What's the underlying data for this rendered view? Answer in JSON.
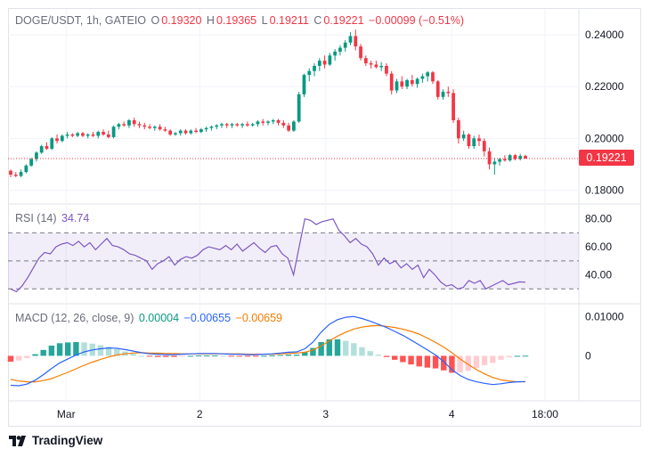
{
  "header": {
    "symbol": "DOGE/USDT, 1h, GATEIO",
    "o_label": "O",
    "o_value": "0.19320",
    "h_label": "H",
    "h_value": "0.19365",
    "l_label": "L",
    "l_value": "0.19211",
    "c_label": "C",
    "c_value": "0.19221",
    "change": "−0.00099 (−0.51%)"
  },
  "last_price": "0.19221",
  "rsi_legend": {
    "label": "RSI (14)",
    "value": "34.74"
  },
  "macd_legend": {
    "label": "MACD (12, 26, close, 9)",
    "hist": "0.00004",
    "macd": "−0.00655",
    "signal": "−0.00659"
  },
  "price_axis": [
    "0.24000",
    "0.22000",
    "0.20000",
    "0.18000"
  ],
  "rsi_axis": [
    "80.00",
    "60.00",
    "40.00"
  ],
  "macd_axis": [
    "0.01000",
    "0"
  ],
  "time_axis": [
    "Mar",
    "2",
    "3",
    "4",
    "18:00"
  ],
  "branding": {
    "name": "TradingView"
  },
  "colors": {
    "up": "#089981",
    "down": "#f23645",
    "rsi": "#7e57c2",
    "macd": "#2962ff",
    "signal": "#f57c00",
    "hist_up_strong": "#26a69a",
    "hist_up_weak": "#b2dfdb",
    "hist_down_strong": "#ff5252",
    "hist_down_weak": "#ffcdd2"
  },
  "chart_data": [
    {
      "type": "candlestick",
      "title": "DOGE/USDT, 1h, GATEIO",
      "ylim": [
        0.175,
        0.25
      ],
      "ohlc": [
        [
          0.1875,
          0.188,
          0.185,
          0.186
        ],
        [
          0.186,
          0.187,
          0.185,
          0.1855
        ],
        [
          0.1855,
          0.188,
          0.185,
          0.187
        ],
        [
          0.187,
          0.19,
          0.1865,
          0.1895
        ],
        [
          0.1895,
          0.1925,
          0.189,
          0.192
        ],
        [
          0.192,
          0.195,
          0.191,
          0.1945
        ],
        [
          0.1945,
          0.1975,
          0.194,
          0.197
        ],
        [
          0.197,
          0.1985,
          0.1955,
          0.196
        ],
        [
          0.196,
          0.2005,
          0.1955,
          0.2
        ],
        [
          0.2,
          0.2015,
          0.198,
          0.199
        ],
        [
          0.199,
          0.2015,
          0.1985,
          0.201
        ],
        [
          0.201,
          0.2025,
          0.2,
          0.2015
        ],
        [
          0.2015,
          0.202,
          0.2005,
          0.201
        ],
        [
          0.201,
          0.2025,
          0.2005,
          0.202
        ],
        [
          0.202,
          0.2025,
          0.2005,
          0.201
        ],
        [
          0.201,
          0.202,
          0.2,
          0.2015
        ],
        [
          0.2015,
          0.2025,
          0.2005,
          0.201
        ],
        [
          0.201,
          0.203,
          0.2,
          0.2025
        ],
        [
          0.2025,
          0.2035,
          0.201,
          0.2015
        ],
        [
          0.2015,
          0.203,
          0.2,
          0.2005
        ],
        [
          0.2005,
          0.205,
          0.2,
          0.2045
        ],
        [
          0.2045,
          0.206,
          0.2035,
          0.2055
        ],
        [
          0.2055,
          0.2065,
          0.2045,
          0.205
        ],
        [
          0.205,
          0.2075,
          0.204,
          0.207
        ],
        [
          0.207,
          0.208,
          0.2045,
          0.2055
        ],
        [
          0.2055,
          0.2065,
          0.204,
          0.205
        ],
        [
          0.205,
          0.206,
          0.2035,
          0.2045
        ],
        [
          0.2045,
          0.2055,
          0.2035,
          0.204
        ],
        [
          0.204,
          0.205,
          0.203,
          0.2045
        ],
        [
          0.2045,
          0.2055,
          0.203,
          0.2035
        ],
        [
          0.2035,
          0.2045,
          0.2025,
          0.203
        ],
        [
          0.203,
          0.2035,
          0.201,
          0.2015
        ],
        [
          0.2015,
          0.2025,
          0.201,
          0.202
        ],
        [
          0.202,
          0.2035,
          0.201,
          0.203
        ],
        [
          0.203,
          0.2035,
          0.2015,
          0.202
        ],
        [
          0.202,
          0.2035,
          0.2015,
          0.203
        ],
        [
          0.203,
          0.204,
          0.202,
          0.2025
        ],
        [
          0.2025,
          0.204,
          0.202,
          0.2035
        ],
        [
          0.2035,
          0.2045,
          0.2025,
          0.204
        ],
        [
          0.204,
          0.205,
          0.203,
          0.2045
        ],
        [
          0.2045,
          0.2055,
          0.2035,
          0.205
        ],
        [
          0.205,
          0.206,
          0.204,
          0.2055
        ],
        [
          0.2055,
          0.206,
          0.204,
          0.205
        ],
        [
          0.205,
          0.206,
          0.204,
          0.2055
        ],
        [
          0.2055,
          0.206,
          0.2045,
          0.205
        ],
        [
          0.205,
          0.206,
          0.204,
          0.2055
        ],
        [
          0.2055,
          0.2065,
          0.2045,
          0.205
        ],
        [
          0.205,
          0.206,
          0.2045,
          0.2055
        ],
        [
          0.2055,
          0.207,
          0.2045,
          0.2065
        ],
        [
          0.2065,
          0.2075,
          0.205,
          0.206
        ],
        [
          0.206,
          0.207,
          0.205,
          0.2065
        ],
        [
          0.2065,
          0.2075,
          0.2055,
          0.207
        ],
        [
          0.207,
          0.2075,
          0.205,
          0.206
        ],
        [
          0.206,
          0.207,
          0.204,
          0.205
        ],
        [
          0.205,
          0.206,
          0.2025,
          0.203
        ],
        [
          0.203,
          0.207,
          0.2025,
          0.2065
        ],
        [
          0.2065,
          0.218,
          0.206,
          0.217
        ],
        [
          0.217,
          0.225,
          0.216,
          0.2245
        ],
        [
          0.2245,
          0.227,
          0.222,
          0.226
        ],
        [
          0.226,
          0.229,
          0.224,
          0.228
        ],
        [
          0.228,
          0.231,
          0.226,
          0.23
        ],
        [
          0.23,
          0.232,
          0.227,
          0.2285
        ],
        [
          0.2285,
          0.233,
          0.228,
          0.232
        ],
        [
          0.232,
          0.2345,
          0.23,
          0.2335
        ],
        [
          0.2335,
          0.236,
          0.232,
          0.235
        ],
        [
          0.235,
          0.238,
          0.2335,
          0.237
        ],
        [
          0.237,
          0.241,
          0.236,
          0.2395
        ],
        [
          0.2395,
          0.242,
          0.234,
          0.2355
        ],
        [
          0.2355,
          0.2365,
          0.23,
          0.231
        ],
        [
          0.231,
          0.232,
          0.228,
          0.229
        ],
        [
          0.229,
          0.23,
          0.227,
          0.2285
        ],
        [
          0.2285,
          0.23,
          0.227,
          0.2275
        ],
        [
          0.2275,
          0.2295,
          0.226,
          0.228
        ],
        [
          0.228,
          0.229,
          0.224,
          0.225
        ],
        [
          0.225,
          0.226,
          0.217,
          0.2185
        ],
        [
          0.2185,
          0.223,
          0.2175,
          0.222
        ],
        [
          0.222,
          0.224,
          0.219,
          0.22
        ],
        [
          0.22,
          0.223,
          0.219,
          0.2225
        ],
        [
          0.2225,
          0.2245,
          0.22,
          0.221
        ],
        [
          0.221,
          0.2235,
          0.2195,
          0.223
        ],
        [
          0.223,
          0.225,
          0.2215,
          0.224
        ],
        [
          0.224,
          0.226,
          0.222,
          0.2255
        ],
        [
          0.2255,
          0.226,
          0.221,
          0.222
        ],
        [
          0.222,
          0.2225,
          0.215,
          0.216
        ],
        [
          0.216,
          0.219,
          0.215,
          0.218
        ],
        [
          0.218,
          0.22,
          0.216,
          0.2175
        ],
        [
          0.2175,
          0.219,
          0.206,
          0.207
        ],
        [
          0.207,
          0.208,
          0.198,
          0.2
        ],
        [
          0.2,
          0.203,
          0.199,
          0.2015
        ],
        [
          0.2015,
          0.202,
          0.196,
          0.197
        ],
        [
          0.197,
          0.201,
          0.196,
          0.2
        ],
        [
          0.2,
          0.2015,
          0.197,
          0.199
        ],
        [
          0.199,
          0.2,
          0.193,
          0.195
        ],
        [
          0.195,
          0.1965,
          0.188,
          0.19
        ],
        [
          0.19,
          0.1925,
          0.186,
          0.191
        ],
        [
          0.191,
          0.1925,
          0.1895,
          0.192
        ],
        [
          0.192,
          0.1935,
          0.191,
          0.1915
        ],
        [
          0.1915,
          0.194,
          0.191,
          0.1935
        ],
        [
          0.1935,
          0.194,
          0.1915,
          0.192
        ],
        [
          0.192,
          0.194,
          0.1915,
          0.1932
        ],
        [
          0.1932,
          0.19365,
          0.19211,
          0.19221
        ]
      ]
    },
    {
      "type": "line",
      "title": "RSI (14)",
      "ylim": [
        20,
        90
      ],
      "bands": [
        30,
        50,
        70
      ],
      "series": [
        {
          "name": "RSI",
          "values": [
            30,
            28,
            32,
            38,
            45,
            52,
            56,
            55,
            60,
            62,
            63,
            61,
            64,
            60,
            63,
            58,
            62,
            66,
            61,
            60,
            58,
            55,
            54,
            52,
            50,
            44,
            48,
            50,
            53,
            47,
            51,
            53,
            52,
            54,
            58,
            60,
            59,
            58,
            61,
            58,
            62,
            57,
            60,
            63,
            59,
            56,
            60,
            61,
            55,
            52,
            40,
            60,
            80,
            79,
            76,
            78,
            79,
            80,
            72,
            68,
            63,
            66,
            62,
            60,
            55,
            47,
            52,
            48,
            50,
            45,
            48,
            44,
            47,
            38,
            44,
            40,
            35,
            32,
            33,
            30,
            31,
            36,
            34,
            36,
            30,
            32,
            34,
            36,
            33,
            34,
            35,
            34.74
          ]
        }
      ]
    },
    {
      "type": "line",
      "title": "MACD (12, 26, close, 9)",
      "ylim": [
        -0.011,
        0.013
      ],
      "series": [
        {
          "name": "MACD",
          "values": [
            -0.0075,
            -0.0076,
            -0.0072,
            -0.0062,
            -0.0048,
            -0.0032,
            -0.0018,
            -0.0008,
            0.0002,
            0.001,
            0.0015,
            0.0018,
            0.002,
            0.0019,
            0.0016,
            0.0012,
            0.0008,
            0.0005,
            0.0004,
            0.0003,
            0.0003,
            0.0004,
            0.0005,
            0.0006,
            0.0006,
            0.0006,
            0.0005,
            0.0004,
            0.0004,
            0.0003,
            0.0003,
            0.0004,
            0.0005,
            0.0007,
            0.0009,
            0.001,
            0.0018,
            0.0035,
            0.006,
            0.008,
            0.0092,
            0.0098,
            0.01,
            0.0095,
            0.0088,
            0.008,
            0.0072,
            0.0062,
            0.0052,
            0.004,
            0.0028,
            0.0015,
            0.0002,
            -0.0015,
            -0.0035,
            -0.005,
            -0.006,
            -0.0066,
            -0.007,
            -0.0073,
            -0.0071,
            -0.0068,
            -0.0066,
            -0.00655
          ]
        },
        {
          "name": "Signal",
          "values": [
            -0.006,
            -0.0064,
            -0.0066,
            -0.0066,
            -0.0063,
            -0.0058,
            -0.005,
            -0.0042,
            -0.0033,
            -0.0024,
            -0.0016,
            -0.0009,
            -0.0003,
            0.0002,
            0.0005,
            0.0007,
            0.0008,
            0.0007,
            0.0007,
            0.0006,
            0.0006,
            0.0005,
            0.0005,
            0.0005,
            0.0005,
            0.0005,
            0.0005,
            0.0005,
            0.0005,
            0.0004,
            0.0004,
            0.0004,
            0.0004,
            0.0005,
            0.0006,
            0.0007,
            0.0009,
            0.0015,
            0.0025,
            0.0038,
            0.005,
            0.006,
            0.0068,
            0.0073,
            0.0076,
            0.0077,
            0.0075,
            0.0072,
            0.0068,
            0.0062,
            0.0055,
            0.0045,
            0.0034,
            0.0022,
            0.0008,
            -0.0008,
            -0.0022,
            -0.0035,
            -0.0046,
            -0.0055,
            -0.0061,
            -0.0064,
            -0.0066,
            -0.00659
          ]
        },
        {
          "name": "Histogram",
          "values": [
            -0.0015,
            -0.0012,
            -0.0006,
            0.0004,
            0.0015,
            0.0026,
            0.0032,
            0.0034,
            0.0035,
            0.0034,
            0.0031,
            0.0027,
            0.0023,
            0.0017,
            0.0011,
            0.0005,
            0.0,
            -0.0002,
            -0.0003,
            -0.0003,
            -0.0003,
            -0.0001,
            0.0,
            0.0001,
            0.0001,
            0.0001,
            0.0,
            -0.0001,
            -0.0001,
            -0.0001,
            -0.0001,
            0.0,
            0.0001,
            0.0002,
            0.0003,
            0.0003,
            0.0009,
            0.002,
            0.0035,
            0.0042,
            0.0042,
            0.0038,
            0.0032,
            0.0022,
            0.0012,
            0.0003,
            -0.0003,
            -0.001,
            -0.0016,
            -0.0022,
            -0.0027,
            -0.003,
            -0.0032,
            -0.0037,
            -0.0043,
            -0.0042,
            -0.0038,
            -0.0031,
            -0.0024,
            -0.0018,
            -0.001,
            -0.0004,
            0.0,
            4e-05
          ]
        }
      ]
    }
  ]
}
